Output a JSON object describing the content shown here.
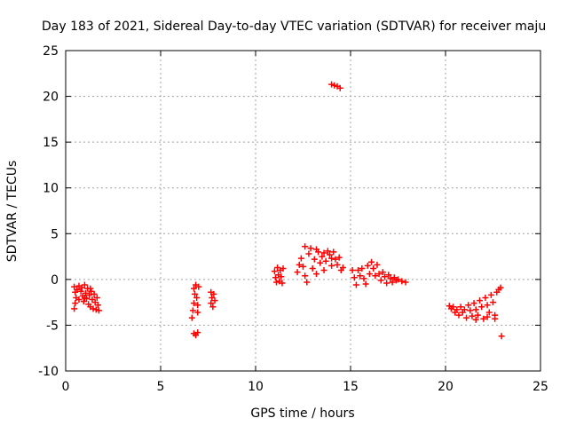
{
  "chart_data": {
    "type": "scatter",
    "title": "Day 183 of 2021, Sidereal Day-to-day VTEC variation (SDTVAR) for receiver maju",
    "xlabel": "GPS time / hours",
    "ylabel": "SDTVAR / TECUs",
    "xlim": [
      0,
      25
    ],
    "ylim": [
      -10,
      25
    ],
    "xticks": [
      0,
      5,
      10,
      15,
      20,
      25
    ],
    "yticks": [
      -10,
      -5,
      0,
      5,
      10,
      15,
      20,
      25
    ],
    "xtick_labels": [
      "0",
      "5",
      "10",
      "15",
      "20",
      "25"
    ],
    "ytick_labels": [
      "-10",
      "-5",
      "0",
      "5",
      "10",
      "15",
      "20",
      "25"
    ],
    "grid": true,
    "marker_color": "#ff0000",
    "marker": "plus",
    "series": [
      {
        "name": "SDTVAR",
        "points": [
          [
            0.45,
            -0.8
          ],
          [
            0.5,
            -1.4
          ],
          [
            0.55,
            -2.0
          ],
          [
            0.5,
            -2.6
          ],
          [
            0.45,
            -3.2
          ],
          [
            0.6,
            -1.1
          ],
          [
            0.7,
            -0.7
          ],
          [
            0.8,
            -1.3
          ],
          [
            0.85,
            -0.9
          ],
          [
            0.9,
            -1.8
          ],
          [
            0.95,
            -2.4
          ],
          [
            1.0,
            -0.6
          ],
          [
            1.05,
            -1.5
          ],
          [
            1.1,
            -2.1
          ],
          [
            1.15,
            -1.0
          ],
          [
            1.2,
            -2.7
          ],
          [
            1.25,
            -1.7
          ],
          [
            1.3,
            -3.0
          ],
          [
            1.35,
            -1.3
          ],
          [
            1.4,
            -2.2
          ],
          [
            1.45,
            -3.2
          ],
          [
            1.5,
            -1.6
          ],
          [
            1.55,
            -2.5
          ],
          [
            1.6,
            -3.3
          ],
          [
            1.65,
            -2.0
          ],
          [
            1.7,
            -2.8
          ],
          [
            1.75,
            -3.4
          ],
          [
            1.3,
            -1.0
          ],
          [
            1.0,
            -2.0
          ],
          [
            0.7,
            -2.2
          ],
          [
            6.75,
            -1.0
          ],
          [
            6.8,
            -1.6
          ],
          [
            6.75,
            -2.6
          ],
          [
            6.7,
            -3.4
          ],
          [
            6.65,
            -4.2
          ],
          [
            6.85,
            -0.6
          ],
          [
            6.9,
            -2.0
          ],
          [
            6.95,
            -2.8
          ],
          [
            6.95,
            -3.6
          ],
          [
            7.0,
            -0.8
          ],
          [
            6.75,
            -5.9
          ],
          [
            6.85,
            -6.1
          ],
          [
            6.95,
            -5.8
          ],
          [
            7.65,
            -1.4
          ],
          [
            7.7,
            -2.0
          ],
          [
            7.65,
            -2.6
          ],
          [
            7.75,
            -3.0
          ],
          [
            7.8,
            -1.6
          ],
          [
            7.85,
            -2.3
          ],
          [
            11.0,
            0.9
          ],
          [
            11.05,
            0.2
          ],
          [
            11.1,
            -0.3
          ],
          [
            11.15,
            1.3
          ],
          [
            11.2,
            0.5
          ],
          [
            11.25,
            -0.2
          ],
          [
            11.3,
            1.0
          ],
          [
            11.35,
            0.3
          ],
          [
            11.4,
            -0.4
          ],
          [
            11.45,
            1.2
          ],
          [
            12.2,
            0.8
          ],
          [
            12.3,
            1.6
          ],
          [
            12.4,
            2.3
          ],
          [
            12.5,
            1.4
          ],
          [
            12.6,
            0.4
          ],
          [
            12.7,
            -0.3
          ],
          [
            12.8,
            2.8
          ],
          [
            12.9,
            3.4
          ],
          [
            13.0,
            1.2
          ],
          [
            13.1,
            2.2
          ],
          [
            13.2,
            0.6
          ],
          [
            13.3,
            3.0
          ],
          [
            13.4,
            1.8
          ],
          [
            13.5,
            2.5
          ],
          [
            13.6,
            1.0
          ],
          [
            13.7,
            2.0
          ],
          [
            13.8,
            3.1
          ],
          [
            13.9,
            2.7
          ],
          [
            14.0,
            1.5
          ],
          [
            14.1,
            3.0
          ],
          [
            14.2,
            2.2
          ],
          [
            14.3,
            1.6
          ],
          [
            14.4,
            2.4
          ],
          [
            14.5,
            1.0
          ],
          [
            14.6,
            1.3
          ],
          [
            12.6,
            3.6
          ],
          [
            13.2,
            3.3
          ],
          [
            13.6,
            2.9
          ],
          [
            14.0,
            2.3
          ],
          [
            14.0,
            21.3
          ],
          [
            14.15,
            21.2
          ],
          [
            14.3,
            21.1
          ],
          [
            14.45,
            20.9
          ],
          [
            15.1,
            1.0
          ],
          [
            15.2,
            0.2
          ],
          [
            15.3,
            -0.6
          ],
          [
            15.4,
            1.0
          ],
          [
            15.5,
            0.4
          ],
          [
            15.6,
            1.2
          ],
          [
            15.7,
            0.1
          ],
          [
            15.8,
            -0.5
          ],
          [
            15.9,
            1.5
          ],
          [
            16.0,
            0.6
          ],
          [
            16.1,
            1.9
          ],
          [
            16.2,
            1.2
          ],
          [
            16.3,
            0.4
          ],
          [
            16.4,
            1.6
          ],
          [
            16.5,
            0.6
          ],
          [
            16.6,
            -0.1
          ],
          [
            16.7,
            0.8
          ],
          [
            16.8,
            0.3
          ],
          [
            16.9,
            -0.4
          ],
          [
            17.0,
            0.5
          ],
          [
            17.1,
            0.1
          ],
          [
            17.2,
            -0.3
          ],
          [
            17.3,
            0.2
          ],
          [
            17.4,
            -0.1
          ],
          [
            17.5,
            0.0
          ],
          [
            17.7,
            -0.2
          ],
          [
            17.9,
            -0.3
          ],
          [
            20.2,
            -2.9
          ],
          [
            20.3,
            -3.2
          ],
          [
            20.4,
            -3.0
          ],
          [
            20.5,
            -3.6
          ],
          [
            20.6,
            -3.3
          ],
          [
            20.7,
            -3.9
          ],
          [
            20.8,
            -3.0
          ],
          [
            20.9,
            -3.6
          ],
          [
            21.0,
            -3.3
          ],
          [
            21.1,
            -4.2
          ],
          [
            21.2,
            -2.8
          ],
          [
            21.3,
            -3.4
          ],
          [
            21.4,
            -4.0
          ],
          [
            21.5,
            -2.6
          ],
          [
            21.6,
            -3.3
          ],
          [
            21.7,
            -3.9
          ],
          [
            21.8,
            -2.3
          ],
          [
            21.9,
            -3.0
          ],
          [
            22.0,
            -4.3
          ],
          [
            22.1,
            -2.0
          ],
          [
            22.2,
            -2.8
          ],
          [
            22.3,
            -3.6
          ],
          [
            22.4,
            -1.7
          ],
          [
            22.5,
            -2.5
          ],
          [
            22.6,
            -3.9
          ],
          [
            22.7,
            -1.4
          ],
          [
            22.8,
            -1.1
          ],
          [
            22.9,
            -0.9
          ],
          [
            22.95,
            -6.2
          ],
          [
            22.6,
            -4.3
          ],
          [
            22.2,
            -4.1
          ],
          [
            21.6,
            -4.4
          ]
        ]
      }
    ]
  }
}
